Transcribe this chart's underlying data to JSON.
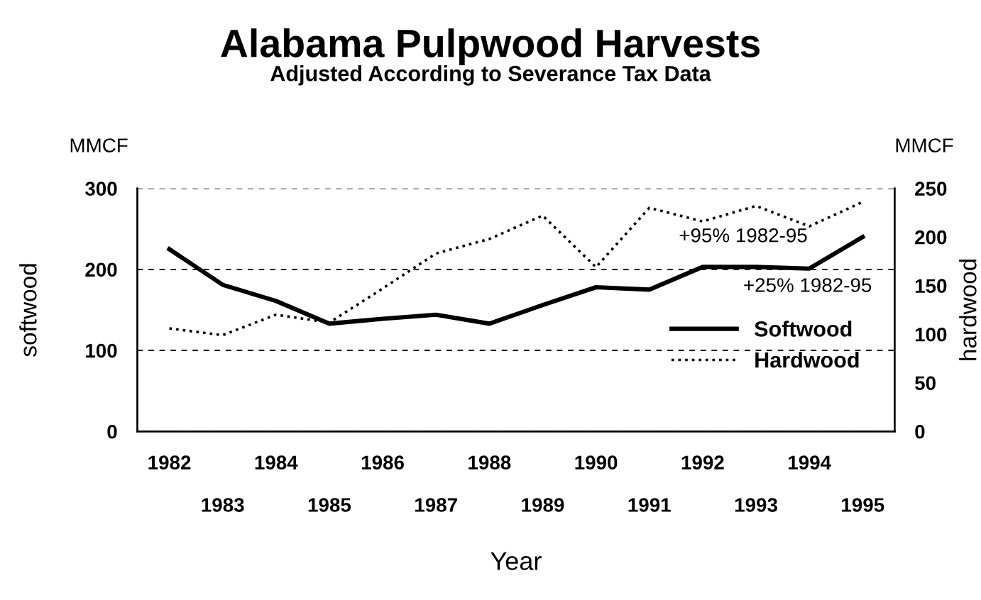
{
  "chart_data": {
    "type": "line",
    "title": "Alabama Pulpwood Harvests",
    "subtitle": "Adjusted According to Severance Tax Data",
    "xlabel": "Year",
    "ylabel": "softwood",
    "y2label": "hardwood",
    "categories": [
      "1982",
      "1983",
      "1984",
      "1985",
      "1986",
      "1987",
      "1988",
      "1989",
      "1990",
      "1991",
      "1992",
      "1993",
      "1994",
      "1995"
    ],
    "series": [
      {
        "name": "Softwood",
        "color": "#000000",
        "line_style": "solid",
        "values": [
          225,
          181,
          161,
          133,
          139,
          144,
          133,
          156,
          178,
          175,
          203,
          203,
          201,
          240
        ]
      },
      {
        "name": "Hardwood",
        "color": "#000000",
        "line_style": "dotted",
        "axis": "y2",
        "values": [
          106,
          99,
          120,
          112,
          147,
          183,
          198,
          222,
          169,
          230,
          216,
          232,
          211,
          236
        ]
      }
    ],
    "ylim": [
      0,
      300
    ],
    "yticks": [
      0,
      100,
      200,
      300
    ],
    "y2lim": [
      0,
      250
    ],
    "y2ticks": [
      0,
      50,
      100,
      150,
      200,
      250
    ],
    "grid": "y",
    "legend": "right",
    "marker": "none",
    "annotations": [
      "MMCF",
      "MMCF",
      "+95% 1982-95",
      "+25% 1982-95"
    ]
  }
}
